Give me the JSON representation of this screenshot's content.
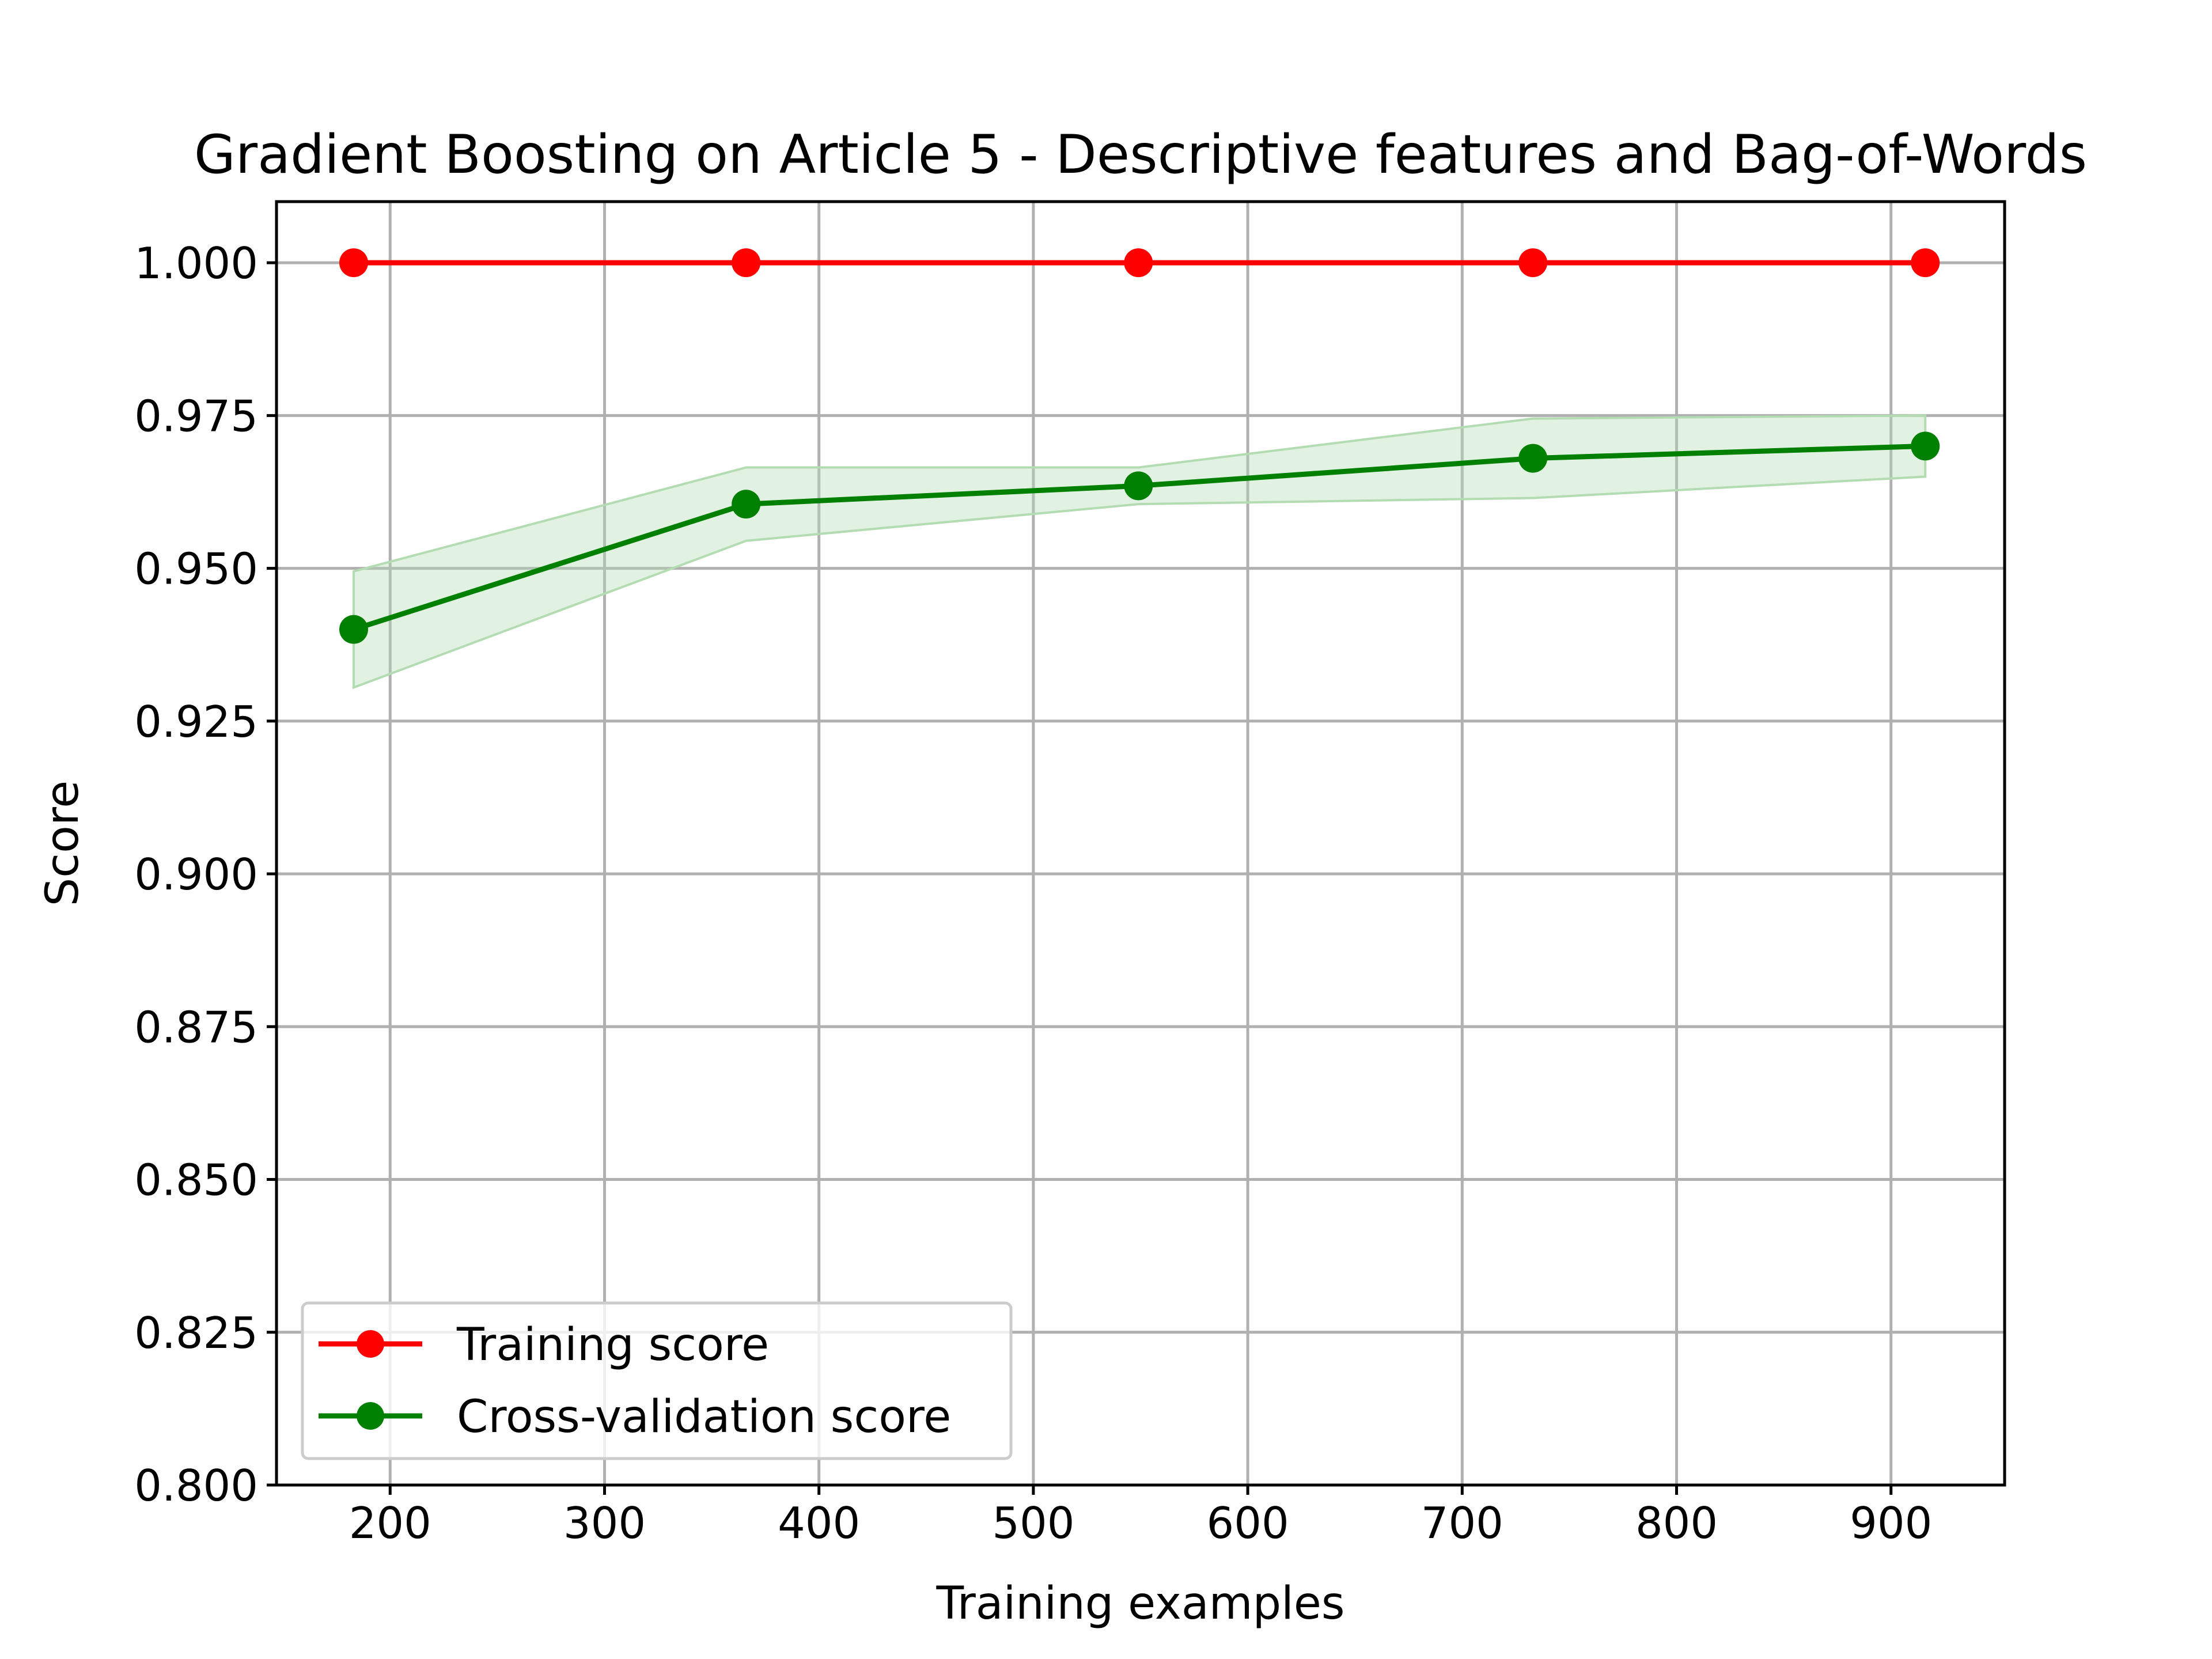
{
  "chart_data": {
    "type": "line",
    "title": "Gradient Boosting on Article 5 - Descriptive features and Bag-of-Words",
    "xlabel": "Training examples",
    "ylabel": "Score",
    "xlim": [
      147,
      953
    ],
    "ylim": [
      0.8,
      1.01
    ],
    "xticks": [
      200,
      300,
      400,
      500,
      600,
      700,
      800,
      900
    ],
    "yticks": [
      0.8,
      0.825,
      0.85,
      0.875,
      0.9,
      0.925,
      0.95,
      0.975,
      1.0
    ],
    "xtick_labels": [
      "200",
      "300",
      "400",
      "500",
      "600",
      "700",
      "800",
      "900"
    ],
    "ytick_labels": [
      "0.800",
      "0.825",
      "0.850",
      "0.875",
      "0.900",
      "0.925",
      "0.950",
      "0.975",
      "1.000"
    ],
    "grid": true,
    "legend_position": "lower-left",
    "x": [
      183,
      366,
      549,
      733,
      916
    ],
    "series": [
      {
        "name": "Training score",
        "color": "#ff0000",
        "values": [
          1.0,
          1.0,
          1.0,
          1.0,
          1.0
        ],
        "band_lower": [
          1.0,
          1.0,
          1.0,
          1.0,
          1.0
        ],
        "band_upper": [
          1.0,
          1.0,
          1.0,
          1.0,
          1.0
        ]
      },
      {
        "name": "Cross-validation score",
        "color": "#008000",
        "band_color": "#b3dcb3",
        "values": [
          0.94,
          0.9605,
          0.9635,
          0.968,
          0.97
        ],
        "band_lower": [
          0.9305,
          0.9545,
          0.9605,
          0.9615,
          0.965
        ],
        "band_upper": [
          0.9495,
          0.9665,
          0.9665,
          0.9745,
          0.975
        ]
      }
    ]
  }
}
